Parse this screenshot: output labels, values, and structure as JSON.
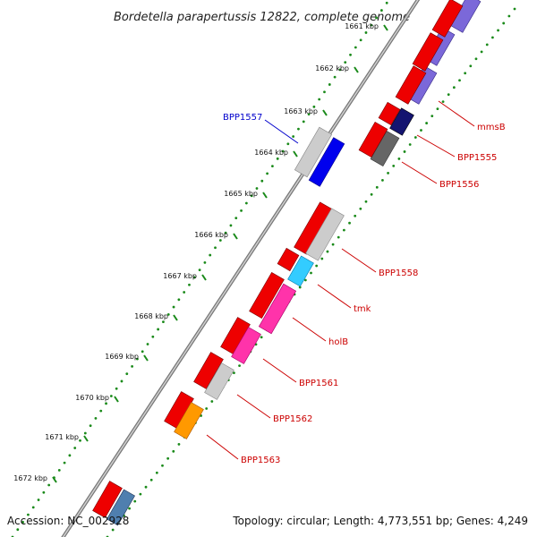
{
  "title": "Bordetella parapertussis 12822, complete genome",
  "footer": {
    "accession": "Accession: NC_002928",
    "topology": "Topology: circular; Length: 4,773,551 bp; Genes: 4,249"
  },
  "colors": {
    "backbone": "#8c8c8c",
    "gc_dots": "#1a8a1a",
    "red_feature": "#ee0000",
    "label_red": "#cc0000",
    "label_blue": "#0000cc"
  },
  "scale_ticks": [
    "1661 kbp",
    "1662 kbp",
    "1663 kbp",
    "1664 kbp",
    "1665 kbp",
    "1666 kbp",
    "1667 kbp",
    "1668 kbp",
    "1669 kbp",
    "1670 kbp",
    "1671 kbp",
    "1672 kbp"
  ],
  "gene_labels": [
    {
      "name": "mmsB",
      "color": "red"
    },
    {
      "name": "BPP1555",
      "color": "red"
    },
    {
      "name": "BPP1556",
      "color": "red"
    },
    {
      "name": "BPP1557",
      "color": "blue"
    },
    {
      "name": "BPP1558",
      "color": "red"
    },
    {
      "name": "tmk",
      "color": "red"
    },
    {
      "name": "holB",
      "color": "red"
    },
    {
      "name": "BPP1561",
      "color": "red"
    },
    {
      "name": "BPP1562",
      "color": "red"
    },
    {
      "name": "BPP1563",
      "color": "red"
    }
  ]
}
